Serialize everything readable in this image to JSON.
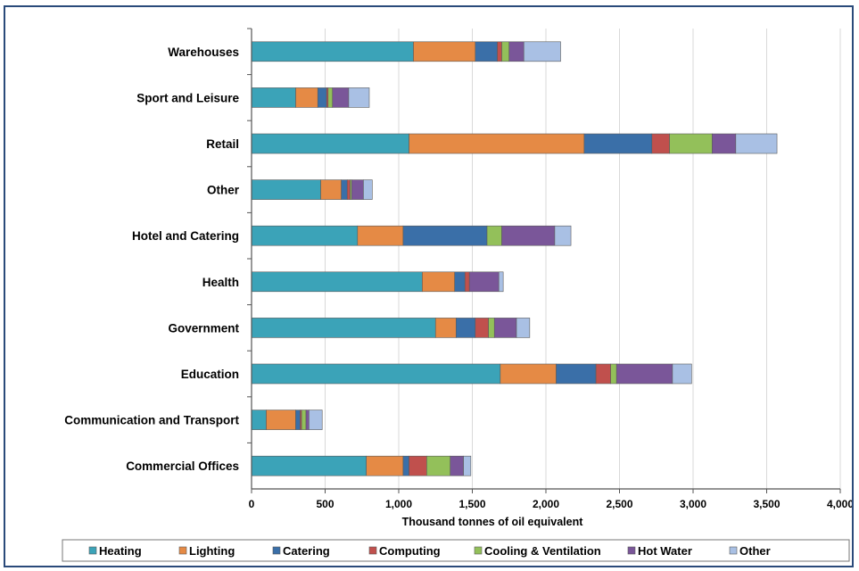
{
  "chart_data": {
    "type": "bar",
    "orientation": "horizontal",
    "stacked": true,
    "categories": [
      "Warehouses",
      "Sport and Leisure",
      "Retail",
      "Other",
      "Hotel and Catering",
      "Health",
      "Government",
      "Education",
      "Communication and Transport",
      "Commercial Offices"
    ],
    "series": [
      {
        "name": "Heating",
        "color": "#3ba3b8",
        "values": [
          1100,
          300,
          1070,
          470,
          720,
          1160,
          1250,
          1690,
          100,
          780
        ]
      },
      {
        "name": "Lighting",
        "color": "#e58a45",
        "values": [
          420,
          150,
          1190,
          140,
          310,
          220,
          140,
          380,
          200,
          250
        ]
      },
      {
        "name": "Catering",
        "color": "#3a6fa8",
        "values": [
          150,
          60,
          460,
          40,
          570,
          70,
          130,
          270,
          30,
          40
        ]
      },
      {
        "name": "Computing",
        "color": "#c0504d",
        "values": [
          30,
          10,
          120,
          20,
          0,
          30,
          90,
          100,
          10,
          120
        ]
      },
      {
        "name": "Cooling & Ventilation",
        "color": "#93c05a",
        "values": [
          50,
          30,
          290,
          10,
          100,
          0,
          40,
          40,
          30,
          160
        ]
      },
      {
        "name": "Hot Water",
        "color": "#7a5699",
        "values": [
          100,
          110,
          160,
          80,
          360,
          200,
          150,
          380,
          20,
          90
        ]
      },
      {
        "name": "Other",
        "color": "#a9c0e4",
        "values": [
          250,
          140,
          280,
          60,
          110,
          30,
          90,
          130,
          90,
          50
        ]
      }
    ],
    "xlabel": "Thousand tonnes of oil equivalent",
    "xlim": [
      0,
      4000
    ],
    "xticks": [
      0,
      500,
      1000,
      1500,
      2000,
      2500,
      3000,
      3500,
      4000
    ],
    "xtick_labels": [
      "0",
      "500",
      "1,000",
      "1,500",
      "2,000",
      "2,500",
      "3,000",
      "3,500",
      "4,000"
    ],
    "grid": true,
    "legend_position": "bottom"
  }
}
